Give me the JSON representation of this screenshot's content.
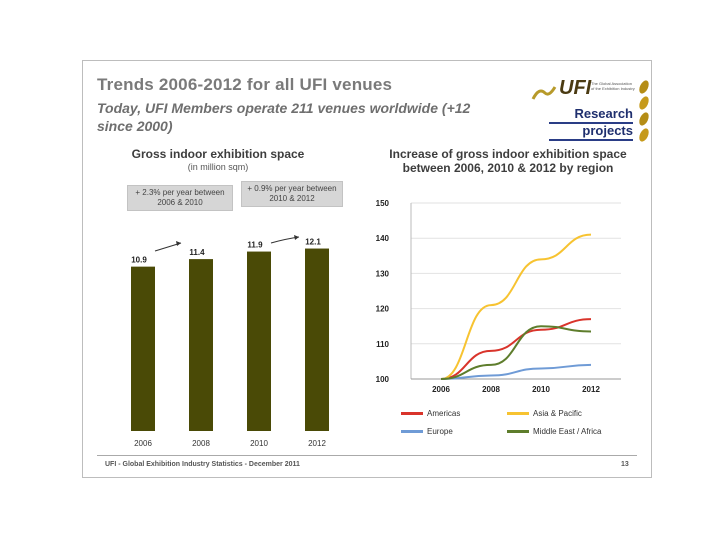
{
  "slide": {
    "title": "Trends 2006-2012 for all UFI venues",
    "subtitle": "Today, UFI Members operate 211 venues worldwide (+12 since 2000)",
    "logo": {
      "text": "UFI",
      "tagline": "The Global Association of the Exhibition Industry"
    },
    "research_label_1": "Research",
    "research_label_2": "projects",
    "footer": "UFI - Global Exhibition Industry Statistics - December 2011",
    "page_number": "13"
  },
  "chart_data": [
    {
      "type": "bar",
      "title": "Gross indoor exhibition space",
      "subtitle": "(in million sqm)",
      "categories": [
        "2006",
        "2008",
        "2010",
        "2012"
      ],
      "values": [
        10.9,
        11.4,
        11.9,
        12.1
      ],
      "value_labels": [
        "10.9",
        "11.4",
        "11.9",
        "12.1"
      ],
      "bar_color": "#4a4a06",
      "annotations": [
        {
          "text": "+ 2.3% per year between 2006 & 2010"
        },
        {
          "text": "+ 0.9% per year between 2010 & 2012"
        }
      ]
    },
    {
      "type": "line",
      "title": "Increase of gross indoor exhibition space between 2006, 2010 & 2012 by region",
      "x": [
        "2006",
        "2008",
        "2010",
        "2012"
      ],
      "ylim": [
        100,
        150
      ],
      "yticks": [
        "100",
        "110",
        "120",
        "130",
        "140",
        "150"
      ],
      "series": [
        {
          "name": "Americas",
          "color": "#d9342b",
          "values": [
            100,
            108,
            114,
            117
          ]
        },
        {
          "name": "Asia & Pacific",
          "color": "#f7c331",
          "values": [
            100,
            121,
            134,
            141
          ]
        },
        {
          "name": "Europe",
          "color": "#6f9bd6",
          "values": [
            100,
            101,
            103,
            104
          ]
        },
        {
          "name": "Middle East / Africa",
          "color": "#5e7d2c",
          "values": [
            100,
            104,
            115,
            113.5
          ]
        }
      ],
      "legend_position": "bottom"
    }
  ]
}
